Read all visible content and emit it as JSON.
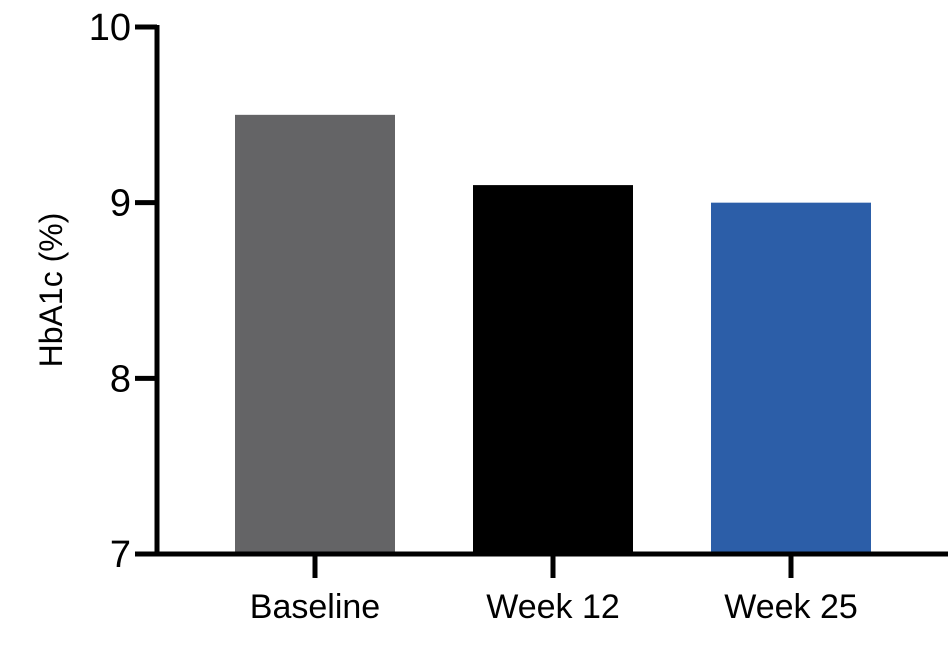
{
  "chart_data": {
    "type": "bar",
    "categories": [
      "Baseline",
      "Week 12",
      "Week 25"
    ],
    "values": [
      9.5,
      9.1,
      9.0
    ],
    "colors": [
      "#646466",
      "#000000",
      "#2c5ea8"
    ],
    "title": "",
    "xlabel": "",
    "ylabel": "HbA1c (%)",
    "ylim": [
      7,
      10
    ],
    "yticks": [
      7,
      8,
      9,
      10
    ],
    "grid": false
  }
}
